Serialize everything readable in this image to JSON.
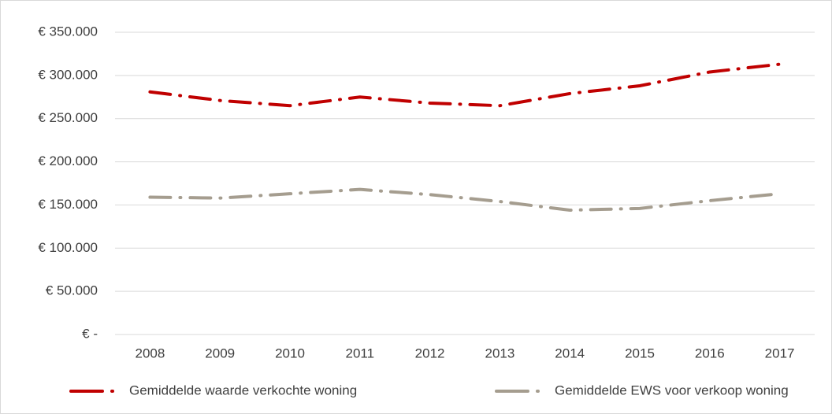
{
  "chart_data": {
    "type": "line",
    "categories": [
      "2008",
      "2009",
      "2010",
      "2011",
      "2012",
      "2013",
      "2014",
      "2015",
      "2016",
      "2017"
    ],
    "series": [
      {
        "name": "Gemiddelde waarde verkochte woning",
        "color": "#c00000",
        "values": [
          281000,
          271000,
          265000,
          275000,
          268000,
          265000,
          279000,
          288000,
          304000,
          313000
        ]
      },
      {
        "name": "Gemiddelde EWS voor verkoop woning",
        "color": "#a59d8f",
        "values": [
          159000,
          158000,
          163000,
          168000,
          162000,
          154000,
          144000,
          146000,
          155000,
          163000
        ]
      }
    ],
    "ylim": [
      0,
      350000
    ],
    "yticks": [
      {
        "value": 0,
        "label": "€ -"
      },
      {
        "value": 50000,
        "label": "€ 50.000"
      },
      {
        "value": 100000,
        "label": "€ 100.000"
      },
      {
        "value": 150000,
        "label": "€ 150.000"
      },
      {
        "value": 200000,
        "label": "€ 200.000"
      },
      {
        "value": 250000,
        "label": "€ 250.000"
      },
      {
        "value": 300000,
        "label": "€ 300.000"
      },
      {
        "value": 350000,
        "label": "€ 350.000"
      }
    ],
    "grid": true,
    "legend": "bottom"
  }
}
